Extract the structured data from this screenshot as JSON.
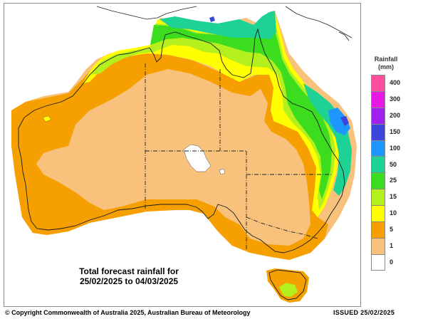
{
  "caption": {
    "line1": "Total forecast rainfall for",
    "line2": "25/02/2025 to 04/03/2025"
  },
  "legend": {
    "title": "Rainfall",
    "unit": "(mm)",
    "classes": [
      {
        "label": "400",
        "color": "#ff4d9e"
      },
      {
        "label": "300",
        "color": "#e619e6"
      },
      {
        "label": "200",
        "color": "#a020f0"
      },
      {
        "label": "150",
        "color": "#3c46dc"
      },
      {
        "label": "100",
        "color": "#1e96ff"
      },
      {
        "label": "50",
        "color": "#1ed296"
      },
      {
        "label": "25",
        "color": "#3cdc1e"
      },
      {
        "label": "15",
        "color": "#b4f01e"
      },
      {
        "label": "10",
        "color": "#ffff00"
      },
      {
        "label": "5",
        "color": "#f5a000"
      },
      {
        "label": "1",
        "color": "#f8c27c"
      },
      {
        "label": "0",
        "color": "#ffffff"
      }
    ]
  },
  "footer": {
    "copyright": "© Copyright Commonwealth of Australia 2025, Australian Bureau of Meteorology",
    "issued": "ISSUED 25/02/2025"
  }
}
